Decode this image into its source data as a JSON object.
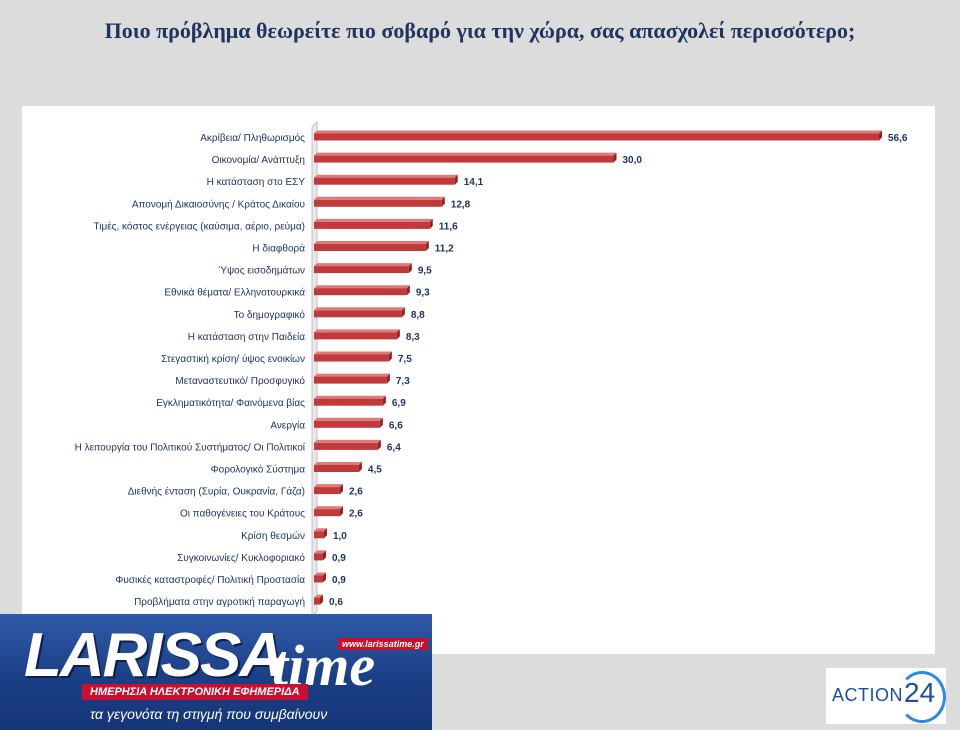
{
  "title": "Ποιο πρόβλημα θεωρείτε πιο σοβαρό για την χώρα, σας απασχολεί περισσότερο;",
  "chart_data": {
    "type": "bar",
    "orientation": "horizontal",
    "title": "Ποιο πρόβλημα θεωρείτε πιο σοβαρό για την χώρα, σας απασχολεί περισσότερο;",
    "xlabel": "",
    "ylabel": "",
    "xlim": [
      0,
      60
    ],
    "grid": false,
    "legend": "none",
    "bar_color": "#c0393b",
    "categories": [
      "Ακρίβεια/ Πληθωρισμός",
      "Οικονομία/ Ανάπτυξη",
      "Η κατάσταση στο ΕΣΥ",
      "Απονομή Δικαιοσύνης / Κράτος Δικαίου",
      "Τιμές, κόστος ενέργειας (καύσιμα, αέριο, ρεύμα)",
      "Η διαφθορά",
      "Ύψος εισοδημάτων",
      "Εθνικά θέματα/ Ελληνοτουρκικά",
      "Το δημογραφικό",
      "Η κατάσταση στην Παιδεία",
      "Στεγαστική κρίση/ ύψος ενοικίων",
      "Μεταναστευτικό/ Προσφυγικό",
      "Εγκληματικότητα/ Φαινόμενα βίας",
      "Ανεργία",
      "Η λειτουργία του Πολιτικού Συστήματος/ Οι Πολιτικοί",
      "Φορολογικό Σύστημα",
      "Διεθνής ένταση (Συρία, Ουκρανία, Γάζα)",
      "Οι παθογένειες του Κράτους",
      "Κρίση θεσμών",
      "Συγκοινωνίες/ Κυκλοφοριακό",
      "Φυσικές καταστροφές/ Πολιτική Προστασία",
      "Προβλήματα στην αγροτική παραγωγή"
    ],
    "values": [
      56.6,
      30.0,
      14.1,
      12.8,
      11.6,
      11.2,
      9.5,
      9.3,
      8.8,
      8.3,
      7.5,
      7.3,
      6.9,
      6.6,
      6.4,
      4.5,
      2.6,
      2.6,
      1.0,
      0.9,
      0.9,
      0.6
    ],
    "value_labels": [
      "56,6",
      "30,0",
      "14,1",
      "12,8",
      "11,6",
      "11,2",
      "9,5",
      "9,3",
      "8,8",
      "8,3",
      "7,5",
      "7,3",
      "6,9",
      "6,6",
      "6,4",
      "4,5",
      "2,6",
      "2,6",
      "1,0",
      "0,9",
      "0,9",
      "0,6"
    ]
  },
  "logos": {
    "larissa": {
      "wordmark": "LARISSA",
      "time": "time",
      "url": "www.larissatime.gr",
      "strip": "ΗΜΕΡΗΣΙΑ ΗΛΕΚΤΡΟΝΙΚΗ ΕΦΗΜΕΡΙΔΑ",
      "slogan": "τα γεγονότα τη στιγμή που συμβαίνουν"
    },
    "action24": {
      "text": "ACTION",
      "number": "24"
    }
  }
}
